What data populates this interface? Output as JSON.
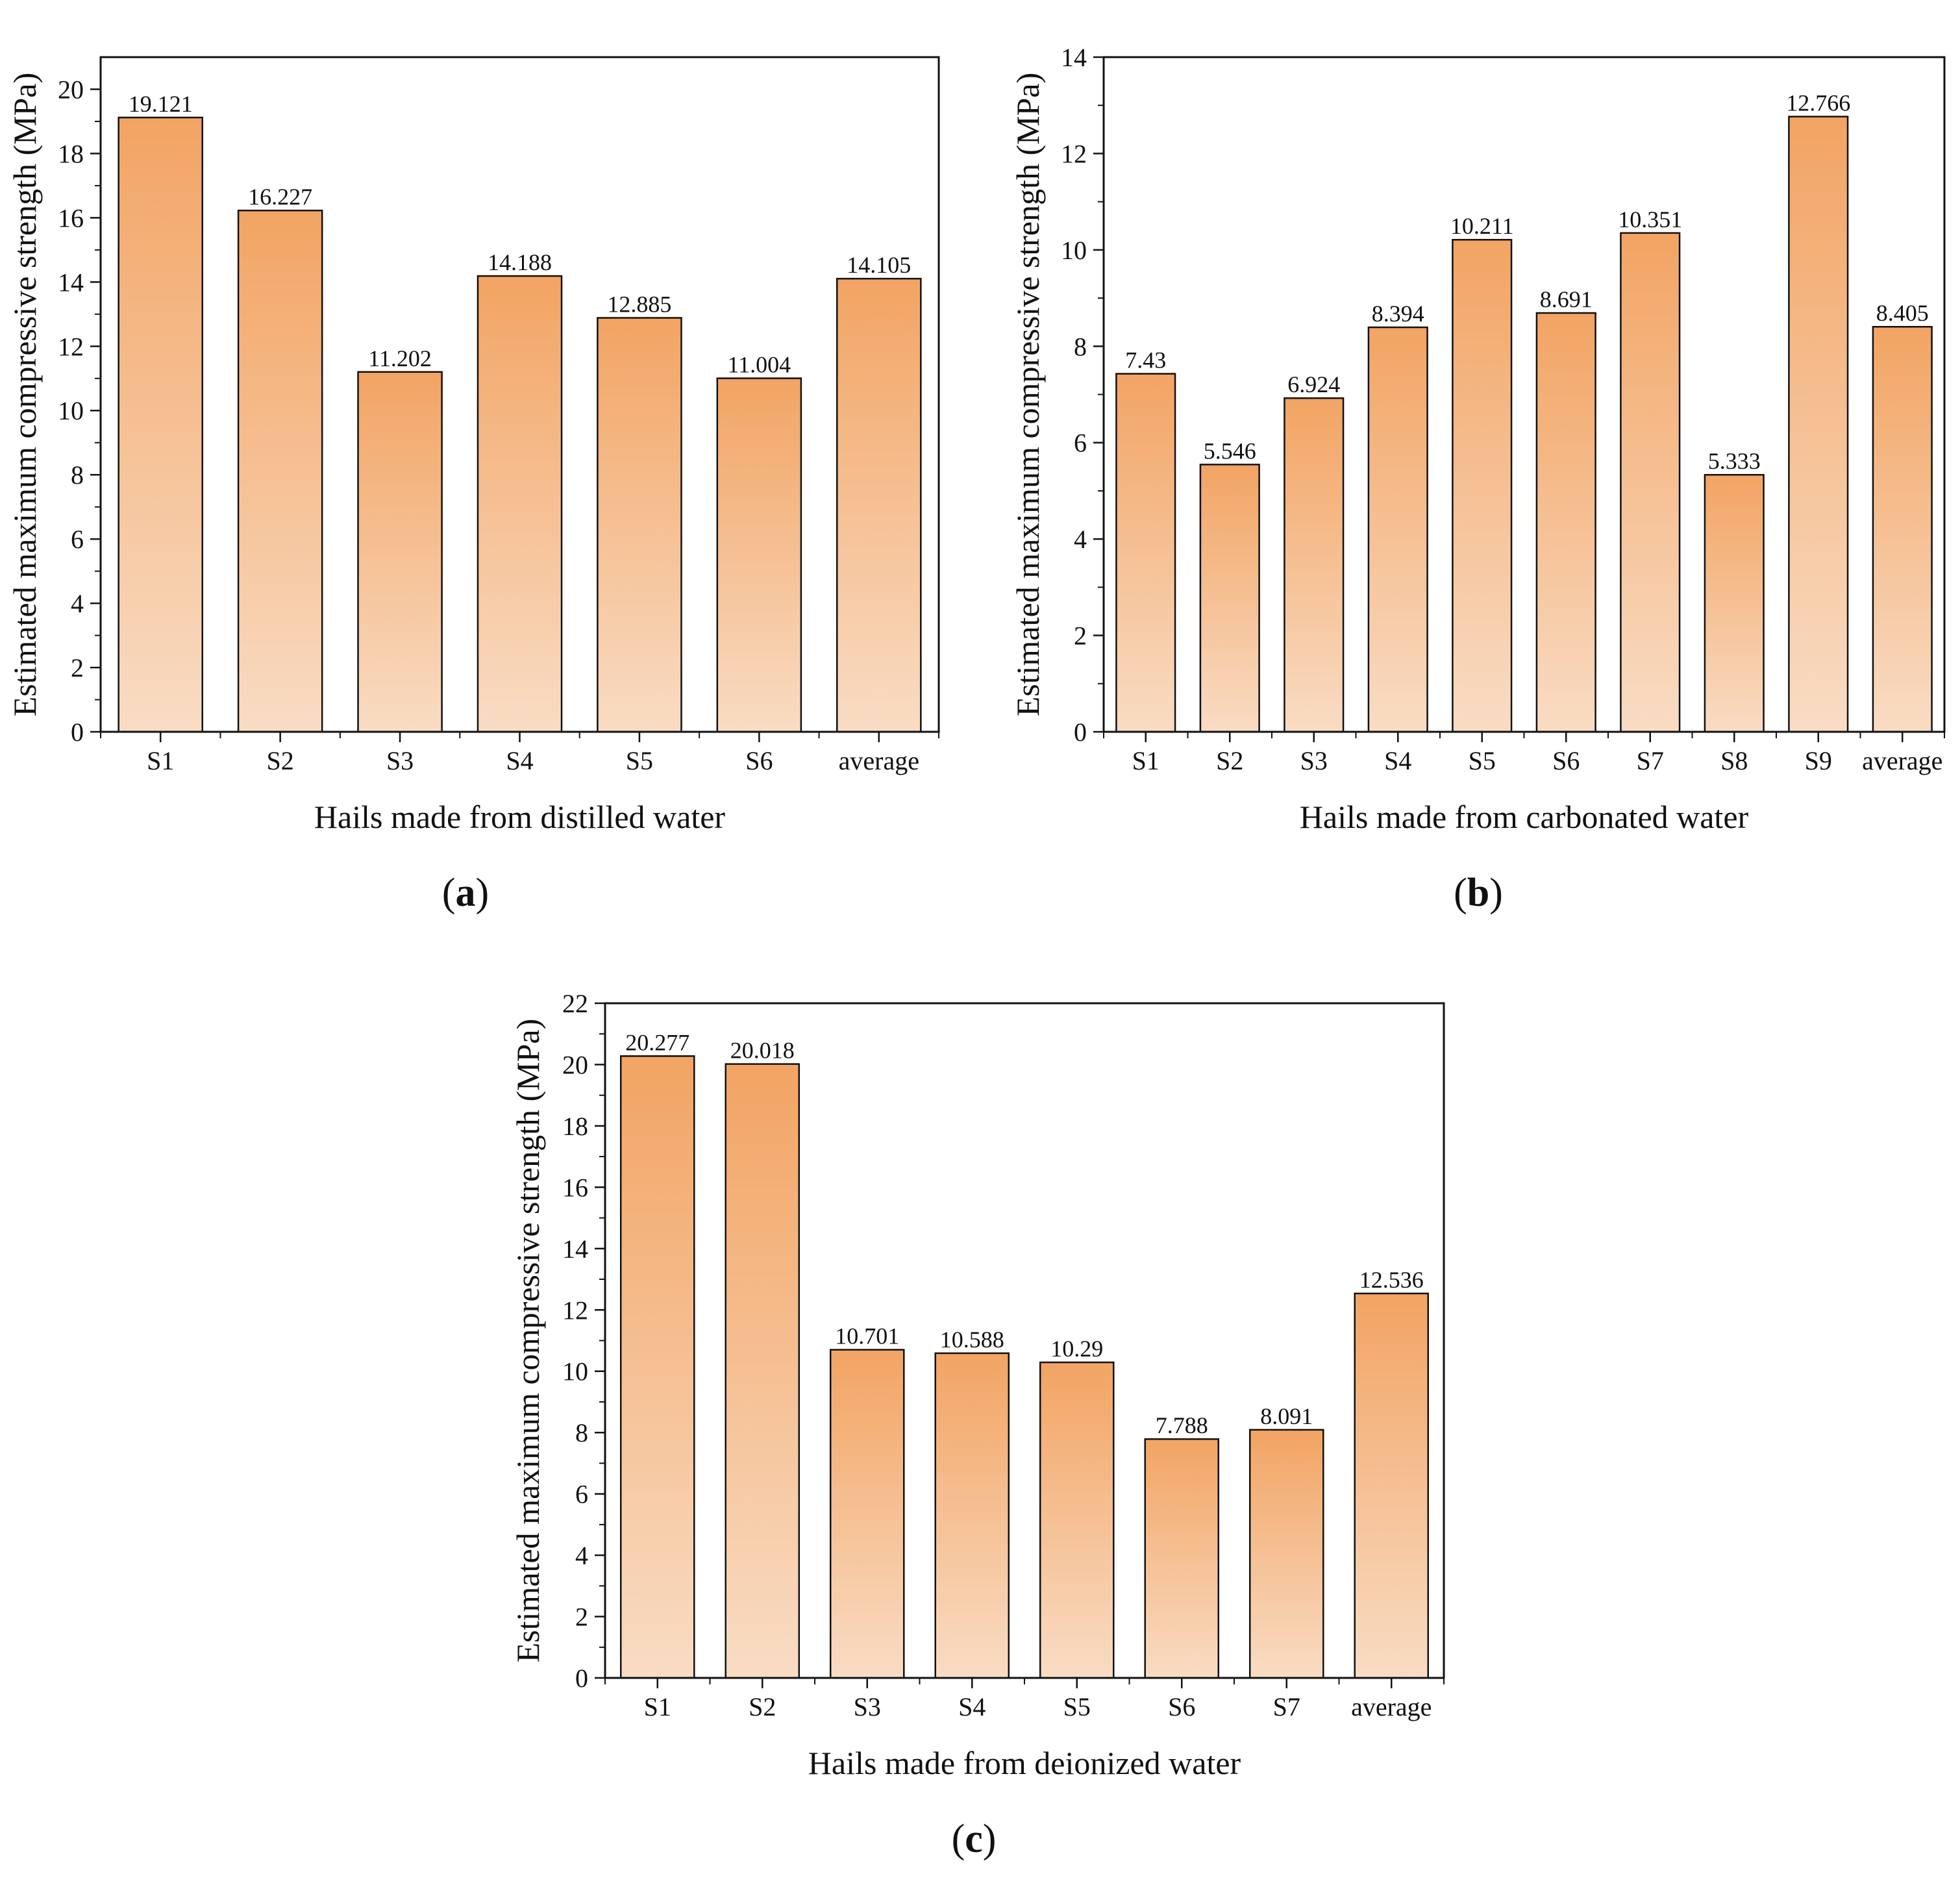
{
  "colors": {
    "bar_top": "#f2a463",
    "bar_bottom": "#f9dcc4",
    "frame": "#111111"
  },
  "chart_data": [
    {
      "type": "bar",
      "panel": "a",
      "categories": [
        "S1",
        "S2",
        "S3",
        "S4",
        "S5",
        "S6",
        "average"
      ],
      "values": [
        19.121,
        16.227,
        11.202,
        14.188,
        12.885,
        11.004,
        14.105
      ],
      "value_labels": [
        "19.121",
        "16.227",
        "11.202",
        "14.188",
        "12.885",
        "11.004",
        "14.105"
      ],
      "xlabel": "Hails made from distilled water",
      "ylabel": "Estimated maximum compressive strength (MPa)",
      "ylim": [
        0,
        21
      ],
      "yticks": [
        0,
        2,
        4,
        6,
        8,
        10,
        12,
        14,
        16,
        18,
        20
      ],
      "caption_letter": "a"
    },
    {
      "type": "bar",
      "panel": "b",
      "categories": [
        "S1",
        "S2",
        "S3",
        "S4",
        "S5",
        "S6",
        "S7",
        "S8",
        "S9",
        "average"
      ],
      "values": [
        7.43,
        5.546,
        6.924,
        8.394,
        10.211,
        8.691,
        10.351,
        5.333,
        12.766,
        8.405
      ],
      "value_labels": [
        "7.43",
        "5.546",
        "6.924",
        "8.394",
        "10.211",
        "8.691",
        "10.351",
        "5.333",
        "12.766",
        "8.405"
      ],
      "xlabel": "Hails made from carbonated water",
      "ylabel": "Estimated maximum compressive strength (MPa)",
      "ylim": [
        0,
        14
      ],
      "yticks": [
        0,
        2,
        4,
        6,
        8,
        10,
        12,
        14
      ],
      "caption_letter": "b"
    },
    {
      "type": "bar",
      "panel": "c",
      "categories": [
        "S1",
        "S2",
        "S3",
        "S4",
        "S5",
        "S6",
        "S7",
        "average"
      ],
      "values": [
        20.277,
        20.018,
        10.701,
        10.588,
        10.29,
        7.788,
        8.091,
        12.536
      ],
      "value_labels": [
        "20.277",
        "20.018",
        "10.701",
        "10.588",
        "10.29",
        "7.788",
        "8.091",
        "12.536"
      ],
      "xlabel": "Hails made from deionized water",
      "ylabel": "Estimated maximum compressive strength (MPa)",
      "ylim": [
        0,
        22
      ],
      "yticks": [
        0,
        2,
        4,
        6,
        8,
        10,
        12,
        14,
        16,
        18,
        20,
        22
      ],
      "caption_letter": "c"
    }
  ]
}
